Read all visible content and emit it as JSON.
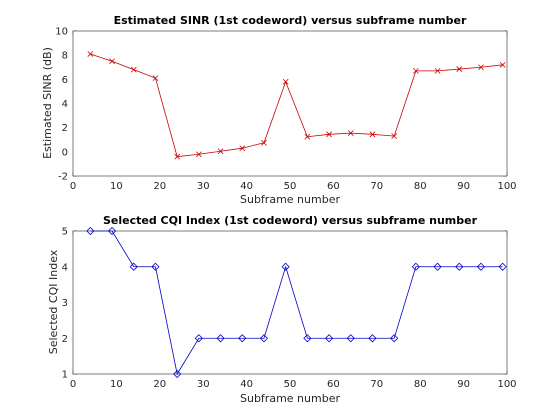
{
  "chart_data": [
    {
      "type": "line",
      "title": "Estimated SINR (1st codeword) versus subframe number",
      "xlabel": "Subframe number",
      "ylabel": "Estimated SINR (dB)",
      "xlim": [
        0,
        100
      ],
      "ylim": [
        -2,
        10
      ],
      "xticks": [
        0,
        10,
        20,
        30,
        40,
        50,
        60,
        70,
        80,
        90,
        100
      ],
      "yticks": [
        -2,
        0,
        2,
        4,
        6,
        8,
        10
      ],
      "grid": false,
      "color": "#cc0000",
      "marker": "x",
      "x": [
        4,
        9,
        14,
        19,
        24,
        29,
        34,
        39,
        44,
        49,
        54,
        59,
        64,
        69,
        74,
        79,
        84,
        89,
        94,
        99
      ],
      "y": [
        8.1,
        7.5,
        6.8,
        6.1,
        -0.4,
        -0.2,
        0.05,
        0.3,
        0.75,
        5.8,
        1.25,
        1.45,
        1.55,
        1.45,
        1.3,
        6.7,
        6.7,
        6.85,
        7.0,
        7.2
      ]
    },
    {
      "type": "line",
      "title": "Selected CQI Index (1st codeword) versus subframe number",
      "xlabel": "Subframe number",
      "ylabel": "Selected CQI Index",
      "xlim": [
        0,
        100
      ],
      "ylim": [
        1,
        5
      ],
      "xticks": [
        0,
        10,
        20,
        30,
        40,
        50,
        60,
        70,
        80,
        90,
        100
      ],
      "yticks": [
        1,
        2,
        3,
        4,
        5
      ],
      "grid": false,
      "color": "#0000cc",
      "marker": "diamond",
      "x": [
        4,
        9,
        14,
        19,
        24,
        29,
        34,
        39,
        44,
        49,
        54,
        59,
        64,
        69,
        74,
        79,
        84,
        89,
        94,
        99
      ],
      "y": [
        5,
        5,
        4,
        4,
        1,
        2,
        2,
        2,
        2,
        4,
        2,
        2,
        2,
        2,
        2,
        4,
        4,
        4,
        4,
        4
      ]
    }
  ]
}
